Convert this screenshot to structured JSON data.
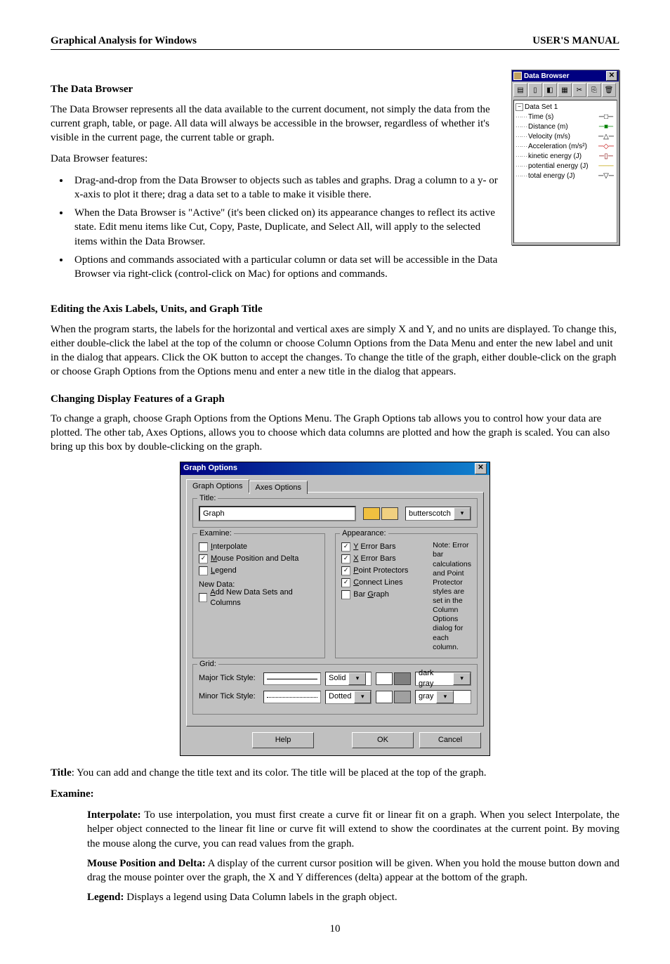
{
  "header": {
    "left": "Graphical Analysis for Windows",
    "right": "USER'S MANUAL"
  },
  "s1": {
    "heading": "The Data Browser",
    "p1": "The Data Browser represents all the data available to the current document, not simply the data from the current graph, table, or page.  All data will always be accessible in the browser, regardless of whether it's visible in the current page, the current table or graph.",
    "p2": "Data Browser features:",
    "b1": "Drag-and-drop from the Data Browser to objects such as tables and graphs. Drag a column to a y- or x-axis to plot it there; drag a data set to a table to make it visible there.",
    "b2": "When the Data Browser is \"Active\" (it's been clicked on) its appearance changes to reflect its active state. Edit menu items like Cut, Copy, Paste, Duplicate, and Select All, will apply to the selected items within the Data Browser.",
    "b3": "Options and commands associated with a particular column or data set will be accessible in the Data Browser via right-click (control-click on Mac) for options and commands."
  },
  "data_browser": {
    "title": "Data Browser",
    "toolbar_icons": [
      "new-dataset-icon",
      "new-column-icon",
      "column-options-icon",
      "sort-icon",
      "copy-icon",
      "paste-icon",
      "delete-icon"
    ],
    "toolbar_glyphs": [
      "▤",
      "▯",
      "◧",
      "▦",
      "✂",
      "⎘",
      "🗑"
    ],
    "root": "Data Set 1",
    "rows": [
      {
        "label": "Time (s)",
        "marker": "─□─",
        "color": "#000000"
      },
      {
        "label": "Distance (m)",
        "marker": "─■─",
        "color": "#008000"
      },
      {
        "label": "Velocity (m/s)",
        "marker": "─△─",
        "color": "#000000"
      },
      {
        "label": "Acceleration (m/s²)",
        "marker": "─◇─",
        "color": "#c00000"
      },
      {
        "label": "kinetic energy (J)",
        "marker": "─▯─",
        "color": "#800000"
      },
      {
        "label": "potential energy (J)",
        "marker": "───",
        "color": "#c0a000"
      },
      {
        "label": "total energy (J)",
        "marker": "─▽─",
        "color": "#000000"
      }
    ]
  },
  "s2": {
    "heading": "Editing the Axis Labels, Units, and Graph Title",
    "p1": "When the program starts, the labels for the horizontal and vertical axes are simply X and Y, and no units are displayed. To change this, either double-click the label at the top of the column or choose Column Options from the Data Menu and enter the new label and unit in the dialog that appears. Click the OK button to accept the changes. To change the title of the graph, either double-click on the graph or choose Graph Options from the Options menu and enter a new title in the dialog that appears."
  },
  "s3": {
    "heading": "Changing Display Features of a Graph",
    "p1": "To change a graph, choose Graph Options from the Options Menu. The Graph Options tab allows you to control how your data are plotted. The other tab, Axes Options, allows you to choose which data columns are plotted and how the graph is scaled. You can also bring up this box by double-clicking on the graph."
  },
  "dialog": {
    "title": "Graph Options",
    "tabs": {
      "active": "Graph Options",
      "inactive": "Axes Options"
    },
    "title_group": {
      "legend": "Title:",
      "value": "Graph",
      "color_swatch1": "#f0c040",
      "color_swatch2": "#f0d080",
      "color_name": "butterscotch"
    },
    "examine": {
      "legend": "Examine:",
      "items": [
        {
          "label": "Interpolate",
          "checked": false,
          "ul": "I"
        },
        {
          "label": "Mouse Position and Delta",
          "checked": true,
          "ul": "M"
        },
        {
          "label": "Legend",
          "checked": false,
          "ul": "L"
        }
      ],
      "newdata_legend": "New Data:",
      "newdata_item": {
        "label": "Add New Data Sets and Columns",
        "checked": false,
        "ul": "A"
      }
    },
    "appearance": {
      "legend": "Appearance:",
      "items": [
        {
          "label": "Y Error Bars",
          "checked": true,
          "ul": "Y"
        },
        {
          "label": "X Error Bars",
          "checked": true,
          "ul": "X"
        },
        {
          "label": "Point Protectors",
          "checked": true,
          "ul": "P"
        },
        {
          "label": "Connect Lines",
          "checked": true,
          "ul": "C"
        },
        {
          "label": "Bar Graph",
          "checked": false,
          "ul": "G"
        }
      ],
      "note": "Note:  Error bar calculations and Point Protector styles are set in the Column Options dialog for each column."
    },
    "grid": {
      "legend": "Grid:",
      "major_label": "Major Tick Style:",
      "major_style": "Solid",
      "major_sw1": "#ffffff",
      "major_sw2": "#808080",
      "major_color": "dark gray",
      "minor_label": "Minor Tick Style:",
      "minor_style": "Dotted",
      "minor_sw1": "#ffffff",
      "minor_sw2": "#a0a0a0",
      "minor_color": "gray"
    },
    "buttons": {
      "help": "Help",
      "ok": "OK",
      "cancel": "Cancel"
    }
  },
  "after": {
    "title_line_bold": "Title",
    "title_line_rest": ": You can add and change the title text and its color. The title will be placed at the top of the graph.",
    "examine_head": "Examine:",
    "interp_bold": "Interpolate:",
    "interp_text": " To use interpolation, you must first create a curve fit or linear fit on a graph. When you select Interpolate, the helper object connected to the linear fit line or curve fit will extend to show the coordinates at the current point. By moving the mouse along the curve, you can read values from the graph.",
    "mouse_bold": "Mouse Position and Delta:",
    "mouse_text": " A display of the current cursor position will be given. When you hold the mouse button down and drag the mouse pointer over the graph, the X and Y differences (delta) appear at the bottom of the graph.",
    "legend_bold": "Legend:",
    "legend_text": "  Displays a legend using Data Column labels in the graph object."
  },
  "page_number": "10"
}
